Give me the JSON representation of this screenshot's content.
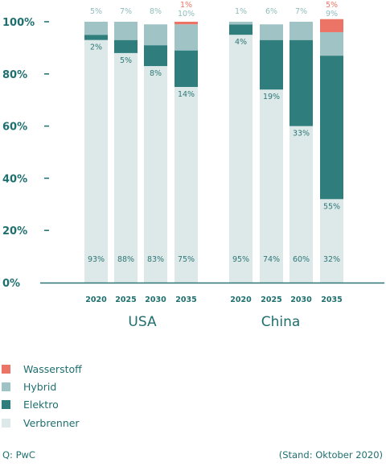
{
  "chart_data": {
    "type": "bar",
    "stacked": true,
    "y_axis": {
      "min": 0,
      "max": 100,
      "ticks": [
        "0%",
        "20%",
        "40%",
        "60%",
        "80%",
        "100%"
      ],
      "tick_values": [
        0,
        20,
        40,
        60,
        80,
        100
      ]
    },
    "groups": [
      {
        "name": "USA",
        "categories": [
          "2020",
          "2025",
          "2030",
          "2035"
        ]
      },
      {
        "name": "China",
        "categories": [
          "2020",
          "2025",
          "2030",
          "2035"
        ]
      }
    ],
    "series": [
      {
        "name": "Verbrenner",
        "color": "#dde9e9",
        "label_color": "#2e7676",
        "values": [
          93,
          88,
          83,
          75,
          95,
          74,
          60,
          32
        ],
        "labels": [
          "93%",
          "88%",
          "83%",
          "75%",
          "95%",
          "74%",
          "60%",
          "32%"
        ]
      },
      {
        "name": "Elektro",
        "color": "#2f7d7d",
        "label_color": "#2e7676",
        "values": [
          2,
          5,
          8,
          14,
          4,
          19,
          33,
          55
        ],
        "labels": [
          "2%",
          "5%",
          "8%",
          "14%",
          "4%",
          "19%",
          "33%",
          "55%"
        ]
      },
      {
        "name": "Hybrid",
        "color": "#a0c4c6",
        "label_color": "#8fbcbc",
        "values": [
          5,
          7,
          8,
          10,
          1,
          6,
          7,
          9
        ],
        "labels": [
          "5%",
          "7%",
          "8%",
          "10%",
          "1%",
          "6%",
          "7%",
          "9%"
        ]
      },
      {
        "name": "Wasserstoff",
        "color": "#ec7466",
        "label_color": "#ec7466",
        "values": [
          0,
          0,
          0,
          1,
          0,
          0,
          0,
          5
        ],
        "labels": [
          "",
          "",
          "",
          "1%",
          "",
          "",
          "",
          "5%"
        ]
      }
    ],
    "legend_order": [
      "Wasserstoff",
      "Hybrid",
      "Elektro",
      "Verbrenner"
    ],
    "legend_position": "bottom-left",
    "grid": false
  },
  "legend": [
    {
      "label": "Wasserstoff",
      "color": "#ec7466"
    },
    {
      "label": "Hybrid",
      "color": "#a0c4c6"
    },
    {
      "label": "Elektro",
      "color": "#2f7d7d"
    },
    {
      "label": "Verbrenner",
      "color": "#dde9e9"
    }
  ],
  "footer": {
    "source": "Q: PwC",
    "stand": "(Stand: Oktober 2020)"
  },
  "colors": {
    "axis": "#2a7474",
    "text": "#1f6f6f"
  }
}
